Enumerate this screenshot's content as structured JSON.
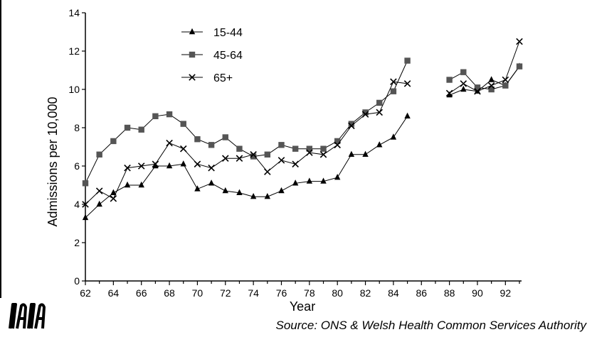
{
  "source_text": "Source:  ONS & Welsh Health Common Services Authority",
  "chart_data": {
    "type": "line",
    "xlabel": "Year",
    "ylabel": "Admissions per 10,000",
    "xlim": [
      62,
      93
    ],
    "ylim": [
      0,
      14
    ],
    "xticks": [
      62,
      64,
      66,
      68,
      70,
      72,
      74,
      76,
      78,
      80,
      82,
      84,
      86,
      88,
      90,
      92
    ],
    "yticks": [
      0,
      2,
      4,
      6,
      8,
      10,
      12,
      14
    ],
    "grid": false,
    "legend": "top-left",
    "series": [
      {
        "name": "15-44",
        "marker": "triangle",
        "color": "#000000",
        "segments": [
          {
            "x": [
              62,
              63,
              64,
              65,
              66,
              67,
              68,
              69,
              70,
              71,
              72,
              73,
              74,
              75,
              76,
              77,
              78,
              79,
              80,
              81,
              82,
              83,
              84,
              85
            ],
            "y": [
              3.3,
              4.0,
              4.6,
              5.0,
              5.0,
              6.0,
              6.0,
              6.1,
              4.8,
              5.1,
              4.7,
              4.6,
              4.4,
              4.4,
              4.7,
              5.1,
              5.2,
              5.2,
              5.4,
              6.6,
              6.6,
              7.1,
              7.5,
              8.6
            ]
          },
          {
            "x": [
              88,
              89,
              90,
              91,
              92,
              93
            ],
            "y": [
              9.7,
              10.0,
              9.9,
              10.5,
              10.2,
              11.2
            ]
          }
        ]
      },
      {
        "name": "45-64",
        "marker": "square",
        "color": "#555555",
        "segments": [
          {
            "x": [
              62,
              63,
              64,
              65,
              66,
              67,
              68,
              69,
              70,
              71,
              72,
              73,
              74,
              75,
              76,
              77,
              78,
              79,
              80,
              81,
              82,
              83,
              84,
              85
            ],
            "y": [
              5.1,
              6.6,
              7.3,
              8.0,
              7.9,
              8.6,
              8.7,
              8.2,
              7.4,
              7.1,
              7.5,
              6.9,
              6.5,
              6.6,
              7.1,
              6.9,
              6.9,
              6.9,
              7.3,
              8.2,
              8.8,
              9.3,
              9.9,
              11.5
            ]
          },
          {
            "x": [
              88,
              89,
              90,
              91,
              92,
              93
            ],
            "y": [
              10.5,
              10.9,
              10.1,
              10.0,
              10.2,
              11.2
            ]
          }
        ]
      },
      {
        "name": "65+",
        "marker": "x",
        "color": "#000000",
        "segments": [
          {
            "x": [
              62,
              63,
              64,
              65,
              66,
              67,
              68,
              69,
              70,
              71,
              72,
              73,
              74,
              75,
              76,
              77,
              78,
              79,
              80,
              81,
              82,
              83,
              84,
              85
            ],
            "y": [
              4.0,
              4.7,
              4.3,
              5.9,
              6.0,
              6.1,
              7.2,
              6.9,
              6.1,
              5.9,
              6.4,
              6.4,
              6.6,
              5.7,
              6.3,
              6.1,
              6.7,
              6.6,
              7.1,
              8.1,
              8.7,
              8.8,
              10.4,
              10.3
            ]
          },
          {
            "x": [
              88,
              89,
              90,
              91,
              92,
              93
            ],
            "y": [
              9.8,
              10.3,
              9.9,
              10.2,
              10.5,
              12.5
            ]
          }
        ]
      }
    ]
  }
}
